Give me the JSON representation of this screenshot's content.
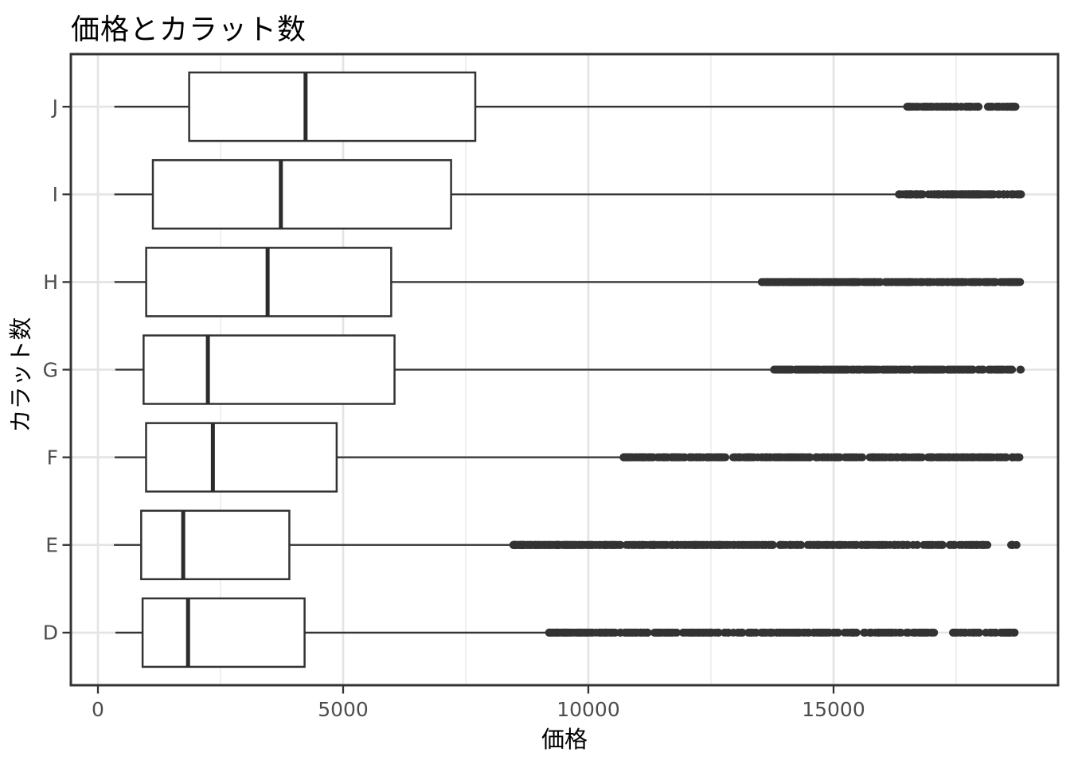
{
  "title": "価格とカラット数",
  "chart_data": {
    "type": "boxplot",
    "orientation": "horizontal",
    "title": "価格とカラット数",
    "xlabel": "価格",
    "ylabel": "カラット数",
    "x_axis": {
      "range": [
        -552,
        19578
      ],
      "major_ticks": [
        0,
        5000,
        10000,
        15000
      ],
      "major_tick_labels": [
        "0",
        "5000",
        "10000",
        "15000"
      ],
      "minor_ticks": [
        2500,
        7500,
        12500,
        17500
      ]
    },
    "y_axis": {
      "categories_top_to_bottom": [
        "J",
        "I",
        "H",
        "G",
        "F",
        "E",
        "D"
      ]
    },
    "grid": "on",
    "series": [
      {
        "category": "J",
        "min": 335,
        "q1": 1860.5,
        "median": 4234,
        "q3": 7695,
        "whisker_high": 16435,
        "outlier_low": 16480,
        "outlier_high": 18710,
        "outliers": {
          "count": 120,
          "skew": 0.9,
          "seed": 7,
          "gaps": [
            [
              17960,
              18140
            ]
          ]
        }
      },
      {
        "category": "I",
        "min": 334,
        "q1": 1120.5,
        "median": 3730,
        "q3": 7201.5,
        "whisker_high": 16290,
        "outlier_low": 16330,
        "outlier_high": 18823,
        "outliers": {
          "count": 180,
          "skew": 0.95,
          "seed": 11,
          "gaps": [
            [
              18390,
              18465
            ]
          ]
        }
      },
      {
        "category": "H",
        "min": 337,
        "q1": 984,
        "median": 3460,
        "q3": 5980,
        "whisker_high": 13460,
        "outlier_low": 13500,
        "outlier_high": 18803,
        "outliers": {
          "count": 340,
          "skew": 1.0,
          "seed": 13,
          "gaps": [
            [
              18330,
              18405
            ]
          ]
        }
      },
      {
        "category": "G",
        "min": 354,
        "q1": 931,
        "median": 2242,
        "q3": 6048,
        "whisker_high": 13710,
        "outlier_low": 13750,
        "outlier_high": 18818,
        "outliers": {
          "count": 310,
          "skew": 1.05,
          "seed": 17,
          "gaps": [
            [
              16550,
              16645
            ]
          ]
        }
      },
      {
        "category": "F",
        "min": 342,
        "q1": 982,
        "median": 2343.5,
        "q3": 4868,
        "whisker_high": 10680,
        "outlier_low": 10720,
        "outlier_high": 18791,
        "outliers": {
          "count": 430,
          "skew": 1.25,
          "seed": 19,
          "gaps": [
            [
              12850,
              12925
            ],
            [
              14550,
              14630
            ]
          ]
        }
      },
      {
        "category": "E",
        "min": 326,
        "q1": 882,
        "median": 1739,
        "q3": 3903,
        "whisker_high": 8430,
        "outlier_low": 8470,
        "outlier_high": 18731,
        "outliers": {
          "count": 470,
          "skew": 1.45,
          "seed": 23,
          "gaps": [
            [
              17250,
              17355
            ],
            [
              18150,
              18600
            ]
          ]
        }
      },
      {
        "category": "D",
        "min": 357,
        "q1": 911,
        "median": 1838,
        "q3": 4214,
        "whisker_high": 9160,
        "outlier_low": 9200,
        "outlier_high": 18693,
        "outliers": {
          "count": 400,
          "skew": 1.4,
          "seed": 29,
          "gaps": [
            [
              10550,
              10645
            ],
            [
              13150,
              13260
            ],
            [
              15500,
              15605
            ],
            [
              17050,
              17400
            ]
          ]
        }
      }
    ],
    "colors": {
      "box_stroke": "#333333",
      "box_fill": "#ffffff",
      "median": "#2b2b2b",
      "outlier": "#333333",
      "panel_border": "#333333",
      "grid_major": "#e4e4e4",
      "grid_minor": "#f0f0f0",
      "axis_text": "#4d4d4d",
      "axis_title": "#000000",
      "tick_mark": "#333333",
      "background": "#ffffff"
    }
  }
}
